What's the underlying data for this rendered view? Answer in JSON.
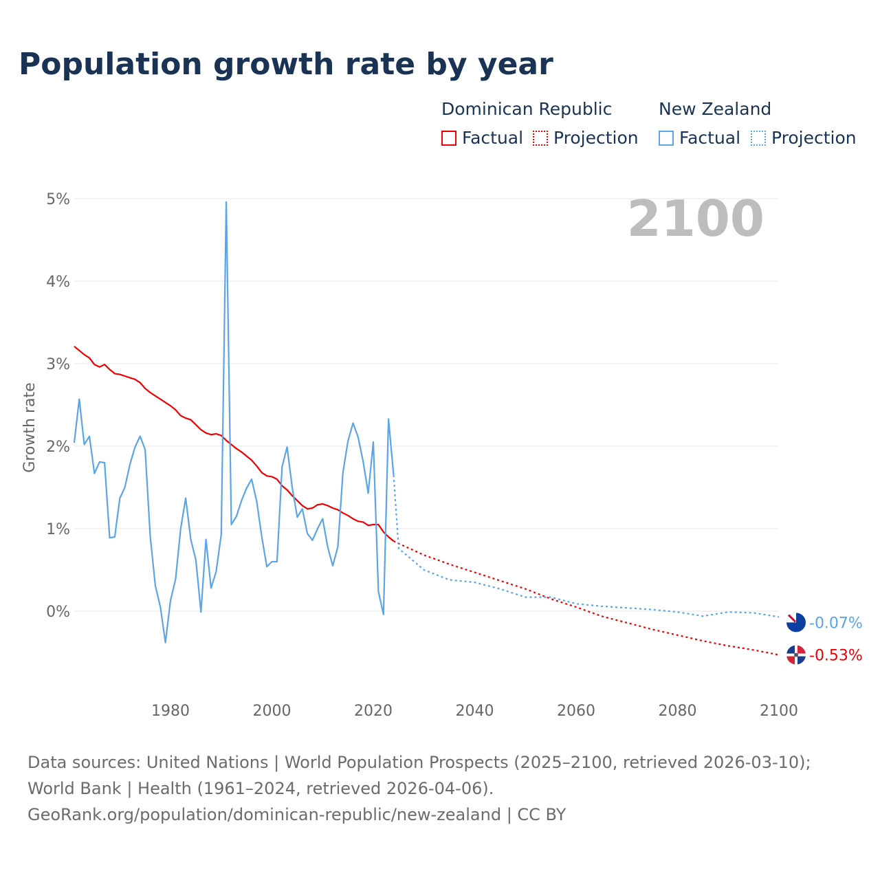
{
  "title": "Population growth rate by year",
  "legend": {
    "groups": [
      {
        "name": "Dominican Republic",
        "color": "#ee0000",
        "factual": "Factual",
        "projection": "Projection"
      },
      {
        "name": "New Zealand",
        "color": "#5aa4e8",
        "factual": "Factual",
        "projection": "Projection"
      }
    ]
  },
  "chart_data": {
    "type": "line",
    "title": "Population growth rate by year",
    "ylabel": "Growth rate",
    "xlabel": "",
    "year_label": "2100",
    "xlim": [
      1961,
      2100
    ],
    "ylim": [
      -1,
      5
    ],
    "x_ticks": [
      1980,
      2000,
      2020,
      2040,
      2060,
      2080,
      2100
    ],
    "y_ticks": [
      0,
      1,
      2,
      3,
      4,
      5
    ],
    "y_tick_labels": [
      "0%",
      "1%",
      "2%",
      "3%",
      "4%",
      "5%"
    ],
    "grid": true,
    "series": [
      {
        "name": "Dominican Republic",
        "color": "#ee0000",
        "end_label": "-0.53%",
        "factual": {
          "start": 1961,
          "values": [
            3.21,
            3.16,
            3.11,
            3.07,
            2.99,
            2.96,
            2.99,
            2.93,
            2.88,
            2.87,
            2.85,
            2.83,
            2.81,
            2.77,
            2.7,
            2.65,
            2.61,
            2.57,
            2.53,
            2.49,
            2.44,
            2.37,
            2.34,
            2.32,
            2.26,
            2.2,
            2.16,
            2.14,
            2.15,
            2.13,
            2.07,
            2.02,
            1.97,
            1.93,
            1.88,
            1.83,
            1.76,
            1.68,
            1.64,
            1.63,
            1.6,
            1.52,
            1.47,
            1.4,
            1.34,
            1.28,
            1.24,
            1.25,
            1.29,
            1.3,
            1.28,
            1.25,
            1.23,
            1.19,
            1.16,
            1.12,
            1.09,
            1.08,
            1.04,
            1.05,
            1.05,
            0.96,
            0.9,
            0.85
          ]
        },
        "projection": {
          "x": [
            2024,
            2025,
            2030,
            2035,
            2040,
            2045,
            2050,
            2055,
            2060,
            2065,
            2070,
            2075,
            2080,
            2085,
            2090,
            2095,
            2100
          ],
          "values": [
            0.85,
            0.82,
            0.68,
            0.57,
            0.47,
            0.37,
            0.27,
            0.15,
            0.05,
            -0.06,
            -0.14,
            -0.22,
            -0.29,
            -0.36,
            -0.42,
            -0.47,
            -0.53
          ]
        }
      },
      {
        "name": "New Zealand",
        "color": "#5aa4e8",
        "end_label": "-0.07%",
        "factual": {
          "start": 1961,
          "values": [
            2.04,
            2.57,
            2.02,
            2.12,
            1.67,
            1.81,
            1.8,
            0.89,
            0.9,
            1.37,
            1.5,
            1.78,
            1.99,
            2.12,
            1.96,
            0.91,
            0.31,
            0.05,
            -0.38,
            0.13,
            0.39,
            1.0,
            1.37,
            0.87,
            0.62,
            -0.01,
            0.87,
            0.28,
            0.48,
            0.93,
            4.96,
            1.05,
            1.15,
            1.34,
            1.49,
            1.6,
            1.33,
            0.9,
            0.54,
            0.6,
            0.6,
            1.75,
            1.99,
            1.5,
            1.14,
            1.24,
            0.94,
            0.86,
            1.0,
            1.12,
            0.78,
            0.55,
            0.78,
            1.68,
            2.06,
            2.28,
            2.11,
            1.81,
            1.43,
            2.05,
            0.24,
            -0.04,
            2.33,
            1.65
          ]
        },
        "projection": {
          "x": [
            2024,
            2025,
            2030,
            2035,
            2040,
            2045,
            2050,
            2055,
            2060,
            2065,
            2070,
            2075,
            2080,
            2085,
            2090,
            2095,
            2100
          ],
          "values": [
            1.65,
            0.76,
            0.5,
            0.38,
            0.35,
            0.27,
            0.17,
            0.17,
            0.09,
            0.06,
            0.04,
            0.02,
            -0.01,
            -0.06,
            -0.01,
            -0.02,
            -0.07
          ]
        }
      }
    ]
  },
  "source": {
    "line1": "Data sources: United Nations | World Population Prospects (2025–2100, retrieved 2026-03-10); World Bank | Health (1961–2024, retrieved 2026-04-06).",
    "line2": "GeoRank.org/population/dominican-republic/new-zealand | CC BY"
  }
}
